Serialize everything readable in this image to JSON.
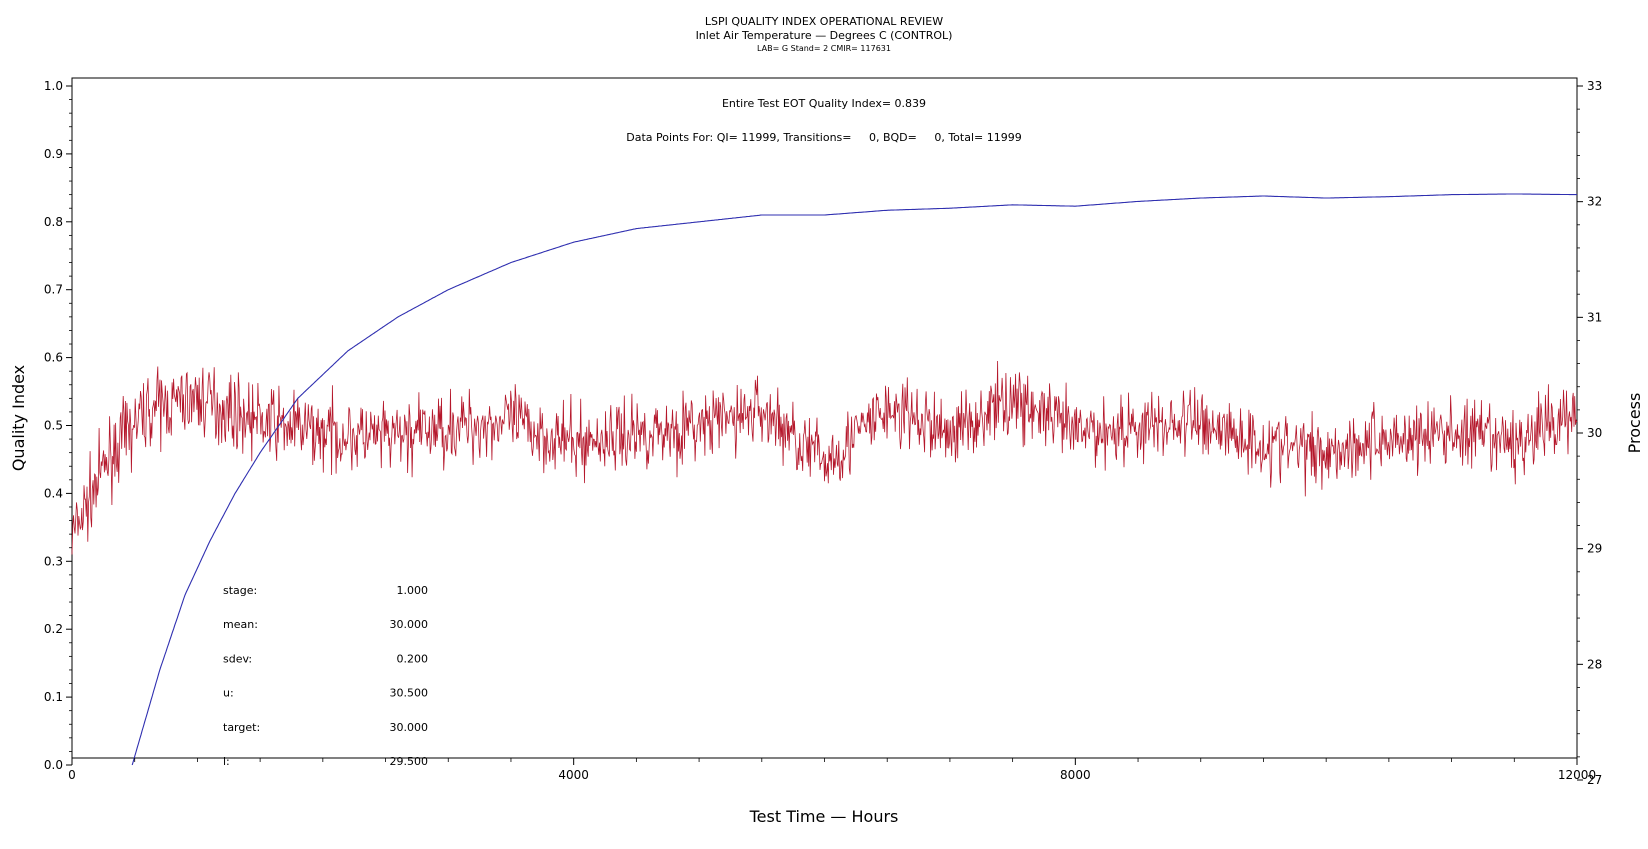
{
  "chart_data": {
    "type": "line",
    "title": "LSPI QUALITY INDEX OPERATIONAL REVIEW",
    "subtitle": "Inlet Air Temperature — Degrees C (CONTROL)",
    "subtitle2": "LAB= G Stand= 2 CMIR= 117631",
    "annotation_qi": "Entire Test EOT Quality Index=   0.839",
    "annotation_points": "Data Points For: QI= 11999, Transitions=     0, BQD=     0, Total= 11999",
    "xlabel": "Test Time — Hours",
    "ylabel_left": "Quality Index",
    "ylabel_right": "Process",
    "xlim": [
      0,
      12000
    ],
    "ylim_left": [
      0,
      1.0
    ],
    "ylim_right": [
      27,
      33
    ],
    "x_ticks": [
      "0",
      "4000",
      "8000",
      "12000"
    ],
    "y_ticks_left": [
      "0.0",
      "0.1",
      "0.2",
      "0.3",
      "0.4",
      "0.5",
      "0.6",
      "0.7",
      "0.8",
      "0.9",
      "1.0"
    ],
    "y_ticks_right": [
      "27",
      "28",
      "29",
      "30",
      "31",
      "32",
      "33"
    ],
    "series": [
      {
        "axis": "left",
        "color": "#2f2fb0",
        "points": [
          [
            480,
            0.0
          ],
          [
            700,
            0.14
          ],
          [
            900,
            0.25
          ],
          [
            1100,
            0.33
          ],
          [
            1300,
            0.4
          ],
          [
            1500,
            0.46
          ],
          [
            1800,
            0.54
          ],
          [
            2200,
            0.61
          ],
          [
            2600,
            0.66
          ],
          [
            3000,
            0.7
          ],
          [
            3500,
            0.74
          ],
          [
            4000,
            0.77
          ],
          [
            4500,
            0.79
          ],
          [
            5000,
            0.8
          ],
          [
            5500,
            0.81
          ],
          [
            6000,
            0.81
          ],
          [
            6500,
            0.817
          ],
          [
            7000,
            0.82
          ],
          [
            7500,
            0.825
          ],
          [
            8000,
            0.823
          ],
          [
            8500,
            0.83
          ],
          [
            9000,
            0.835
          ],
          [
            9500,
            0.838
          ],
          [
            10000,
            0.835
          ],
          [
            10500,
            0.837
          ],
          [
            11000,
            0.84
          ],
          [
            11500,
            0.841
          ],
          [
            12000,
            0.84
          ]
        ]
      },
      {
        "axis": "right",
        "color": "#b5172b",
        "noise_sd": 0.2,
        "points": [
          [
            0,
            29.1
          ],
          [
            300,
            29.8
          ],
          [
            600,
            30.2
          ],
          [
            1000,
            30.3
          ],
          [
            1500,
            30.1
          ],
          [
            2000,
            30.0
          ],
          [
            2500,
            29.95
          ],
          [
            3000,
            30.05
          ],
          [
            3500,
            30.1
          ],
          [
            4000,
            29.9
          ],
          [
            4500,
            30.0
          ],
          [
            5000,
            30.05
          ],
          [
            5500,
            30.2
          ],
          [
            6000,
            29.75
          ],
          [
            6500,
            30.2
          ],
          [
            7000,
            30.0
          ],
          [
            7500,
            30.3
          ],
          [
            8000,
            30.0
          ],
          [
            8500,
            30.05
          ],
          [
            9000,
            30.1
          ],
          [
            9500,
            29.9
          ],
          [
            10000,
            29.85
          ],
          [
            10500,
            29.95
          ],
          [
            11000,
            30.0
          ],
          [
            11500,
            29.9
          ],
          [
            12000,
            30.2
          ]
        ]
      }
    ],
    "stats": [
      {
        "label": "stage:",
        "value": "1.000"
      },
      {
        "label": "mean:",
        "value": "30.000"
      },
      {
        "label": "sdev:",
        "value": "0.200"
      },
      {
        "label": "u:",
        "value": "30.500"
      },
      {
        "label": "target:",
        "value": "30.000"
      },
      {
        "label": "l:",
        "value": "29.500"
      }
    ]
  }
}
